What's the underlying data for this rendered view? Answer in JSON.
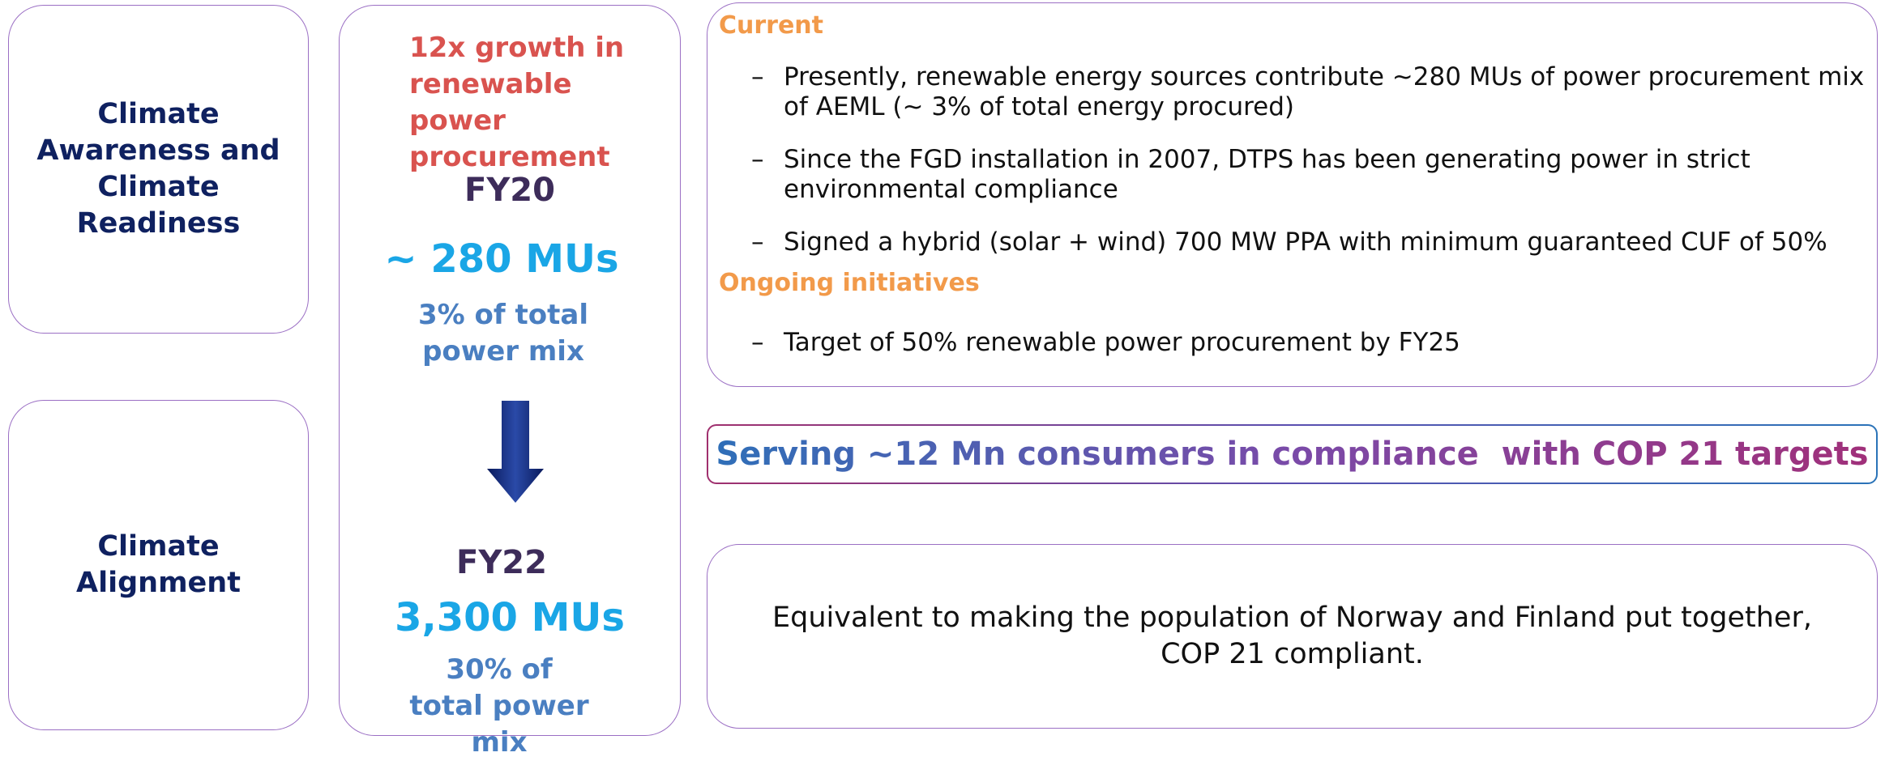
{
  "left_panels": [
    {
      "label": "Climate Awareness and Climate Readiness"
    },
    {
      "label": "Climate Alignment"
    }
  ],
  "middle": {
    "headline": "12x growth in renewable power procurement",
    "from": {
      "year": "FY20",
      "amount": "~ 280 MUs",
      "share": "3% of total power mix"
    },
    "to": {
      "year": "FY22",
      "amount": "3,300 MUs",
      "share": "30% of total power mix"
    }
  },
  "details": {
    "sections": [
      {
        "heading": "Current",
        "bullets": [
          "Presently, renewable energy sources contribute ~280 MUs of power procurement mix of AEML (~ 3% of total energy procured)",
          "Since the FGD installation in 2007, DTPS has been generating power in strict environmental compliance",
          "Signed a hybrid (solar + wind) 700 MW PPA with minimum guaranteed CUF of 50%"
        ]
      },
      {
        "heading": "Ongoing initiatives",
        "bullets": [
          "Target of 50% renewable power procurement by FY25"
        ]
      }
    ]
  },
  "banner": "Serving ~12 Mn consumers in compliance  with COP 21 targets",
  "equivalence": "Equivalent to making the population of Norway and Finland put together, COP 21 compliant."
}
